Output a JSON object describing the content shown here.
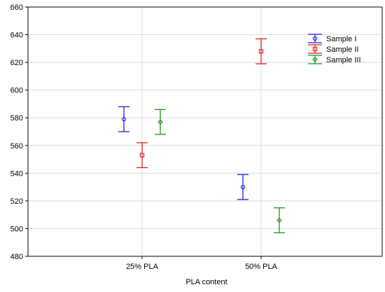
{
  "chart_data": {
    "type": "scatter",
    "xlabel": "PLA content",
    "ylabel": "",
    "categories": [
      "25% PLA",
      "50% PLA"
    ],
    "ylim": [
      480,
      660
    ],
    "yticks": [
      480,
      500,
      520,
      540,
      560,
      580,
      600,
      620,
      640,
      660
    ],
    "grid": true,
    "legend_position": "top-right",
    "series": [
      {
        "name": "Sample I",
        "color": "#1f1fe0",
        "marker": "circle",
        "values": [
          579,
          530
        ],
        "errors": [
          9,
          9
        ]
      },
      {
        "name": "Sample II",
        "color": "#e01f1f",
        "marker": "square",
        "values": [
          553,
          628
        ],
        "errors": [
          9,
          9
        ]
      },
      {
        "name": "Sample III",
        "color": "#1f8f1f",
        "marker": "diamond",
        "values": [
          577,
          506
        ],
        "errors": [
          9,
          9
        ]
      }
    ]
  }
}
